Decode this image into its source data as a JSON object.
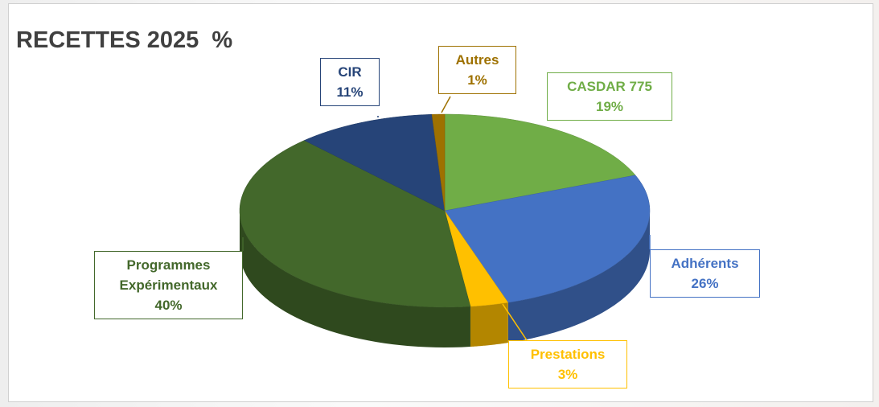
{
  "chart_data": {
    "type": "pie3d",
    "title": "RECETTES 2025  %",
    "categories": [
      "CASDAR 775",
      "Adhérents",
      "Prestations",
      "Programmes Expérimentaux",
      "CIR",
      "Autres"
    ],
    "values": [
      19,
      26,
      3,
      40,
      11,
      1
    ],
    "value_labels": [
      "19%",
      "26%",
      "3%",
      "40%",
      "11%",
      "1%"
    ],
    "colors": [
      "#70ad47",
      "#4472c4",
      "#ffc000",
      "#43682b",
      "#264478",
      "#9e7100"
    ]
  }
}
